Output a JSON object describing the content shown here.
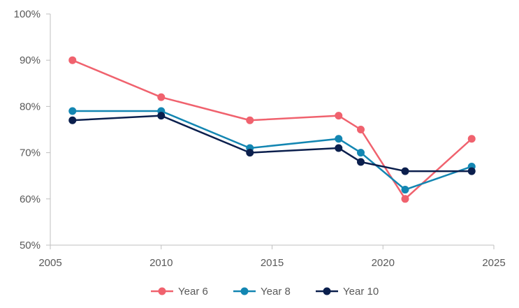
{
  "chart_data": {
    "type": "line",
    "title": "",
    "xlabel": "",
    "ylabel": "",
    "xlim": [
      2005,
      2025
    ],
    "ylim": [
      50,
      100
    ],
    "x_ticks": [
      "2005",
      "2010",
      "2015",
      "2020",
      "2025"
    ],
    "y_ticks": [
      "50%",
      "60%",
      "70%",
      "80%",
      "90%",
      "100%"
    ],
    "grid": false,
    "legend_position": "bottom",
    "x": [
      2006,
      2010,
      2014,
      2018,
      2019,
      2021,
      2024
    ],
    "series": [
      {
        "name": "Year 6",
        "color": "#f0626e",
        "values": [
          90,
          82,
          77,
          78,
          75,
          60,
          73
        ]
      },
      {
        "name": "Year 8",
        "color": "#1386b2",
        "values": [
          79,
          79,
          71,
          73,
          70,
          62,
          67
        ]
      },
      {
        "name": "Year 10",
        "color": "#0b1f4d",
        "values": [
          77,
          78,
          70,
          71,
          68,
          66,
          66
        ]
      }
    ]
  }
}
